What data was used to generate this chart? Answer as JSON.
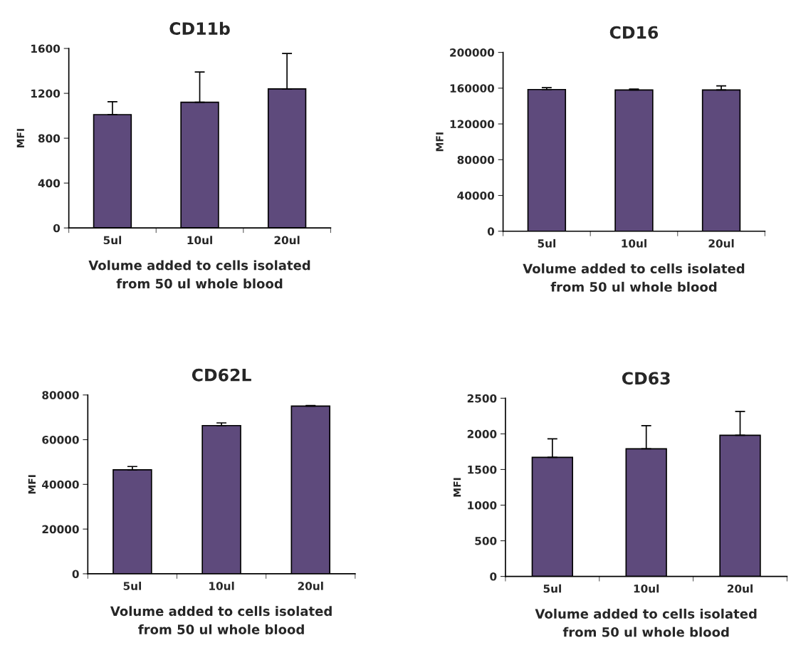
{
  "chart_data": [
    {
      "type": "bar",
      "title": "CD11b",
      "ylabel": "MFI",
      "xlabel": "Volume added to cells isolated\nfrom 50 ul whole blood",
      "categories": [
        "5ul",
        "10ul",
        "20ul"
      ],
      "values": [
        1010,
        1120,
        1240
      ],
      "errors": [
        [
          1010,
          1125
        ],
        [
          1120,
          1390
        ],
        [
          1240,
          1555
        ]
      ],
      "color": "#5e4a7c",
      "ylim": [
        0,
        1600
      ],
      "yticks": [
        0,
        400,
        800,
        1200,
        1600
      ],
      "grid": false,
      "legend": false
    },
    {
      "type": "bar",
      "title": "CD16",
      "ylabel": "MFI",
      "xlabel": "Volume added to cells isolated\nfrom 50 ul whole blood",
      "categories": [
        "5ul",
        "10ul",
        "20ul"
      ],
      "values": [
        158500,
        158000,
        158000
      ],
      "errors": [
        [
          158500,
          160500
        ],
        [
          158000,
          159000
        ],
        [
          158000,
          162500
        ]
      ],
      "color": "#5e4a7c",
      "ylim": [
        0,
        200000
      ],
      "yticks": [
        0,
        40000,
        80000,
        120000,
        160000,
        200000
      ],
      "grid": false,
      "legend": false
    },
    {
      "type": "bar",
      "title": "CD62L",
      "ylabel": "MFI",
      "xlabel": "Volume added to cells isolated\nfrom 50 ul whole blood",
      "categories": [
        "5ul",
        "10ul",
        "20ul"
      ],
      "values": [
        46500,
        66300,
        75000
      ],
      "errors": [
        [
          46500,
          48000
        ],
        [
          66300,
          67500
        ],
        [
          75000,
          75300
        ]
      ],
      "color": "#5e4a7c",
      "ylim": [
        0,
        80000
      ],
      "yticks": [
        0,
        20000,
        40000,
        60000,
        80000
      ],
      "grid": false,
      "legend": false
    },
    {
      "type": "bar",
      "title": "CD63",
      "ylabel": "MFI",
      "xlabel": "Volume added to cells isolated\nfrom 50 ul whole blood",
      "categories": [
        "5ul",
        "10ul",
        "20ul"
      ],
      "values": [
        1670,
        1790,
        1980
      ],
      "errors": [
        [
          1670,
          1930
        ],
        [
          1790,
          2115
        ],
        [
          1980,
          2315
        ]
      ],
      "color": "#5e4a7c",
      "ylim": [
        0,
        2500
      ],
      "yticks": [
        0,
        500,
        1000,
        1500,
        2000,
        2500
      ],
      "grid": false,
      "legend": false
    }
  ]
}
